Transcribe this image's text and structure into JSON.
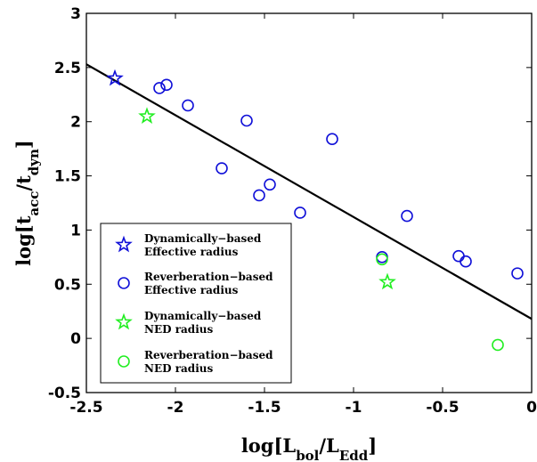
{
  "chart_data": {
    "type": "scatter",
    "xlabel": "log[L_bol/L_Edd]",
    "ylabel": "log[t_acc/t_dyn]",
    "xlim": [
      -2.5,
      0
    ],
    "ylim": [
      -0.5,
      3
    ],
    "xticks": [
      "-2.5",
      "-2",
      "-1.5",
      "-1",
      "-0.5",
      "0"
    ],
    "yticks": [
      "-0.5",
      "0",
      "0.5",
      "1",
      "1.5",
      "2",
      "2.5",
      "3"
    ],
    "grid": false,
    "legend_position": "bottom-left",
    "fit_line": {
      "x": [
        -2.5,
        0
      ],
      "y": [
        2.53,
        0.18
      ]
    },
    "colors": {
      "blue": "#1010d8",
      "green": "#22ee22",
      "line": "#000000"
    },
    "series": [
      {
        "legend": [
          "Dynamically−based",
          "Effective radius"
        ],
        "marker": "star",
        "color": "#1010d8",
        "points": [
          [
            -2.34,
            2.4
          ]
        ]
      },
      {
        "legend": [
          "Reverberation−based",
          "Effective radius"
        ],
        "marker": "circle",
        "color": "#1010d8",
        "points": [
          [
            -2.09,
            2.31
          ],
          [
            -2.05,
            2.34
          ],
          [
            -1.93,
            2.15
          ],
          [
            -1.6,
            2.01
          ],
          [
            -1.74,
            1.57
          ],
          [
            -1.47,
            1.42
          ],
          [
            -1.53,
            1.32
          ],
          [
            -1.3,
            1.16
          ],
          [
            -1.12,
            1.84
          ],
          [
            -0.7,
            1.13
          ],
          [
            -0.84,
            0.75
          ],
          [
            -0.41,
            0.76
          ],
          [
            -0.37,
            0.71
          ],
          [
            -0.08,
            0.6
          ]
        ]
      },
      {
        "legend": [
          "Dynamically−based",
          "NED radius"
        ],
        "marker": "star",
        "color": "#22ee22",
        "points": [
          [
            -2.16,
            2.05
          ],
          [
            -0.81,
            0.52
          ]
        ]
      },
      {
        "legend": [
          "Reverberation−based",
          "NED radius"
        ],
        "marker": "circle",
        "color": "#22ee22",
        "points": [
          [
            -0.84,
            0.73
          ],
          [
            -0.19,
            -0.06
          ]
        ]
      }
    ]
  }
}
